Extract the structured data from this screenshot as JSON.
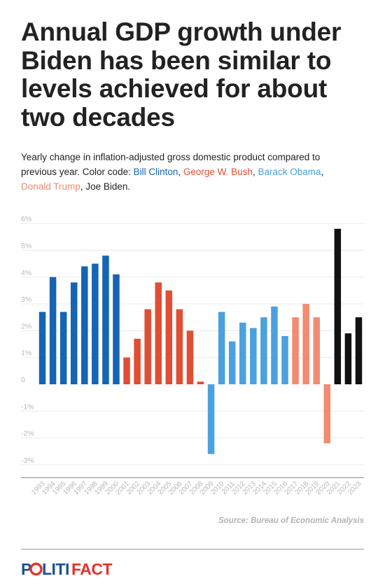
{
  "header": {
    "title": "Annual GDP growth under Biden has been similar to levels achieved for about two decades",
    "subtitle_intro": "Yearly change in inflation-adjusted gross domestic product compared to previous year. Color code: ",
    "legend": [
      {
        "name": "Bill Clinton",
        "color": "#1565b4",
        "sep": ", "
      },
      {
        "name": "George W. Bush",
        "color": "#e04e34",
        "sep": ", "
      },
      {
        "name": "Barack Obama",
        "color": "#4ba1dd",
        "sep": ", "
      },
      {
        "name": "Donald Trump",
        "color": "#f28b72",
        "sep": ", "
      },
      {
        "name": "Joe Biden",
        "color": "#222222",
        "sep": "."
      }
    ]
  },
  "chart_data": {
    "type": "bar",
    "categories": [
      "1993",
      "1994",
      "1995",
      "1996",
      "1997",
      "1998",
      "1999",
      "2000",
      "2001",
      "2002",
      "2003",
      "2004",
      "2005",
      "2006",
      "2007",
      "2008",
      "2009",
      "2010",
      "2011",
      "2012",
      "2013",
      "2014",
      "2015",
      "2016",
      "2017",
      "2018",
      "2019",
      "2020",
      "2021",
      "2022",
      "2023"
    ],
    "values": [
      2.7,
      4.0,
      2.7,
      3.8,
      4.4,
      4.5,
      4.8,
      4.1,
      1.0,
      1.7,
      2.8,
      3.8,
      3.5,
      2.8,
      2.0,
      0.1,
      -2.6,
      2.7,
      1.6,
      2.3,
      2.1,
      2.5,
      2.9,
      1.8,
      2.5,
      3.0,
      2.5,
      -2.2,
      5.8,
      1.9,
      2.5
    ],
    "bar_colors": [
      "#1565b4",
      "#1565b4",
      "#1565b4",
      "#1565b4",
      "#1565b4",
      "#1565b4",
      "#1565b4",
      "#1565b4",
      "#e04e34",
      "#e04e34",
      "#e04e34",
      "#e04e34",
      "#e04e34",
      "#e04e34",
      "#e04e34",
      "#e04e34",
      "#4ba1dd",
      "#4ba1dd",
      "#4ba1dd",
      "#4ba1dd",
      "#4ba1dd",
      "#4ba1dd",
      "#4ba1dd",
      "#4ba1dd",
      "#f28b72",
      "#f28b72",
      "#f28b72",
      "#f28b72",
      "#111111",
      "#111111",
      "#111111"
    ],
    "y_ticks": [
      6,
      5,
      4,
      3,
      2,
      1,
      0,
      -1,
      -2,
      -3
    ],
    "y_tick_labels": [
      "6%",
      "5%",
      "4%",
      "3%",
      "2%",
      "1%",
      "0",
      "-1%",
      "-2%",
      "-3%"
    ],
    "ylim": [
      -3.3,
      6.2
    ],
    "grid": true,
    "title": "",
    "xlabel": "",
    "ylabel": ""
  },
  "footer": {
    "source": "Source: Bureau of Economic Analysis",
    "logo": "POLITIFACT"
  }
}
